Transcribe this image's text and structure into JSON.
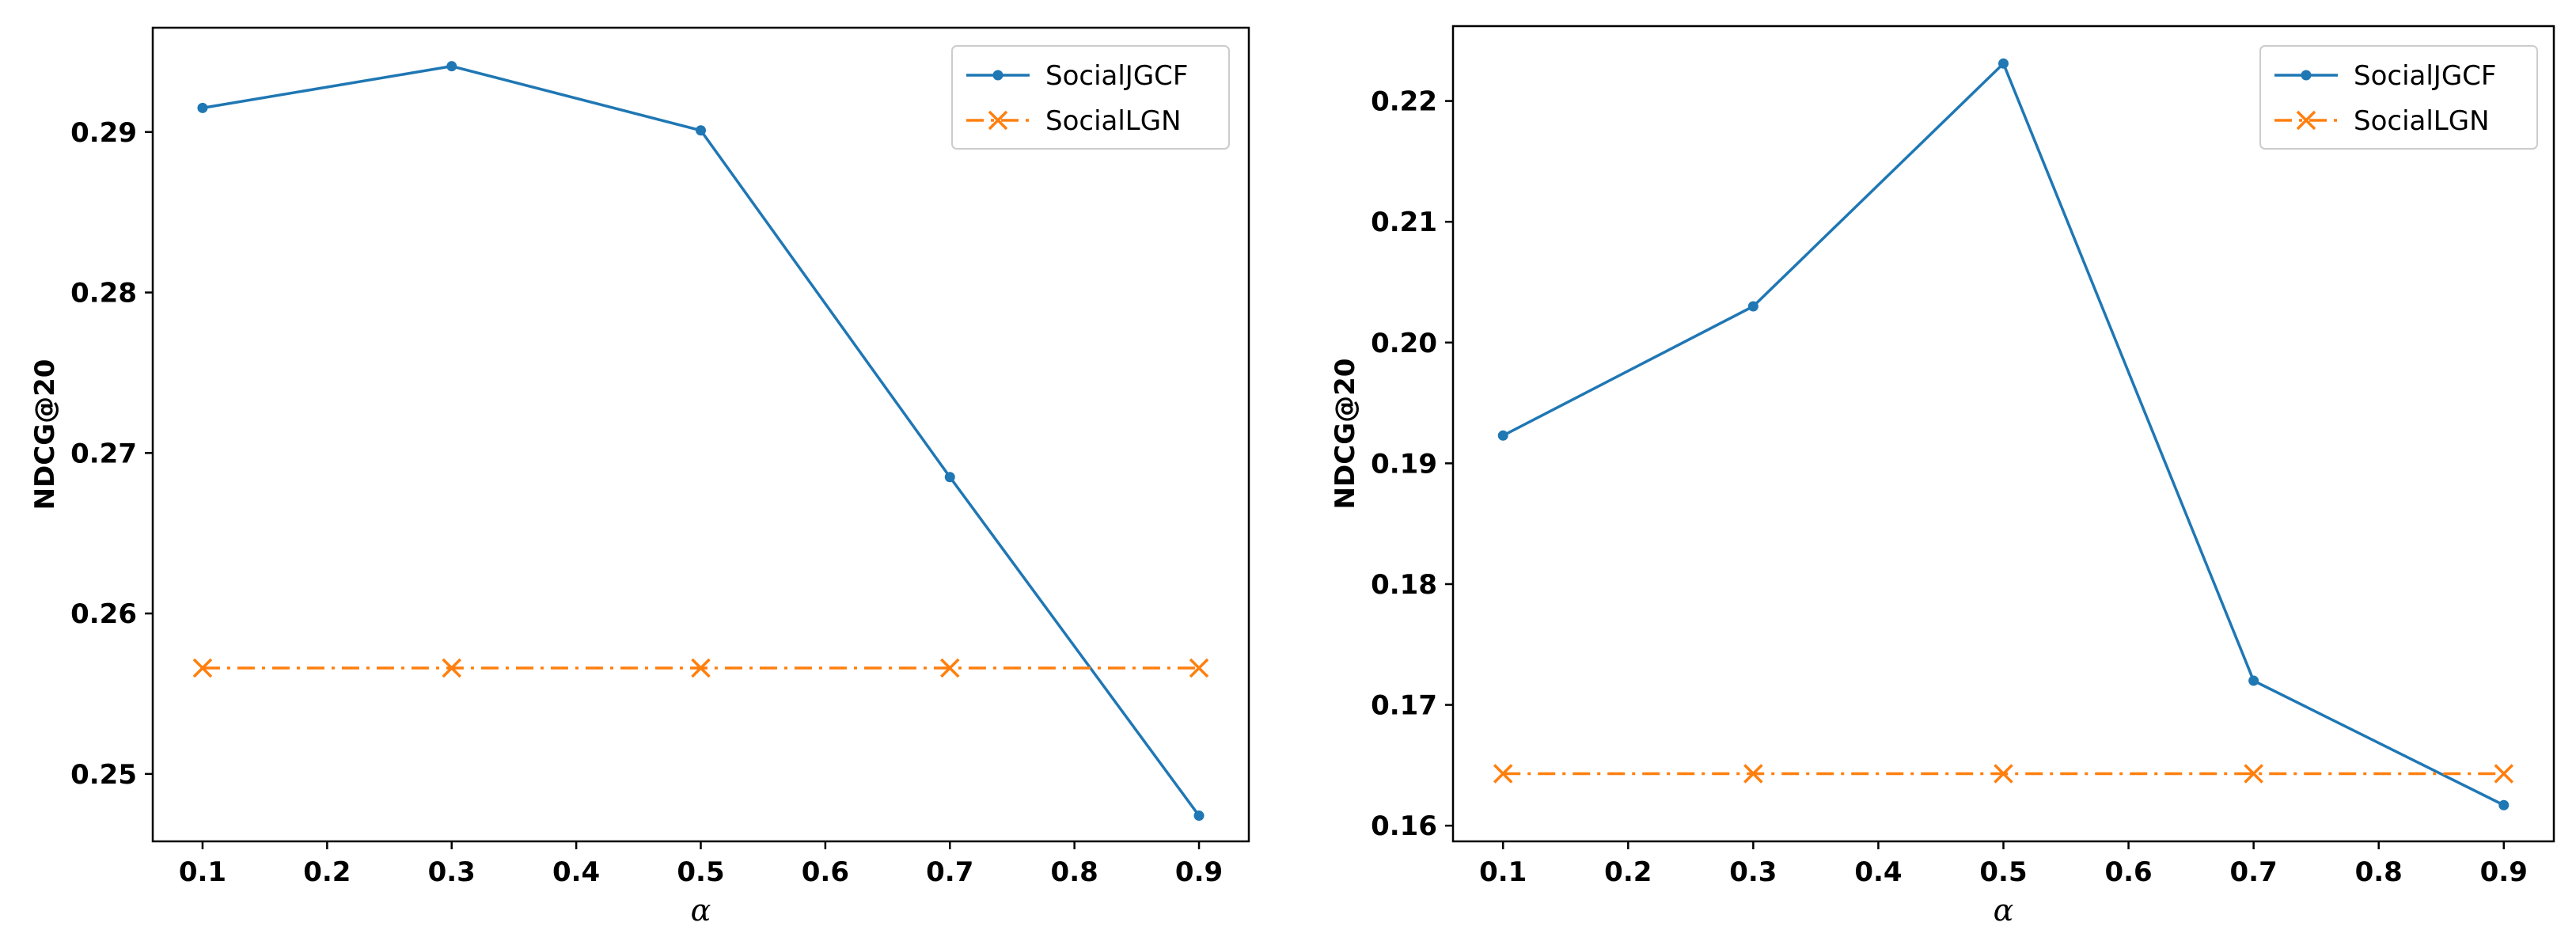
{
  "chart_data": [
    {
      "type": "line",
      "title": "",
      "xlabel": "α",
      "ylabel": "NDCG@20",
      "x": [
        0.1,
        0.3,
        0.5,
        0.7,
        0.9
      ],
      "xticks": [
        0.1,
        0.2,
        0.3,
        0.4,
        0.5,
        0.6,
        0.7,
        0.8,
        0.9
      ],
      "xtick_labels": [
        "0.1",
        "0.2",
        "0.3",
        "0.4",
        "0.5",
        "0.6",
        "0.7",
        "0.8",
        "0.9"
      ],
      "xlim": [
        0.06,
        0.94
      ],
      "yticks": [
        0.25,
        0.26,
        0.27,
        0.28,
        0.29
      ],
      "ytick_labels": [
        "0.25",
        "0.26",
        "0.27",
        "0.28",
        "0.29"
      ],
      "ylim": [
        0.2458,
        0.2965
      ],
      "grid": false,
      "legend_position": "top-right",
      "series": [
        {
          "name": "SocialJGCF",
          "values": [
            0.2915,
            0.2941,
            0.2901,
            0.2685,
            0.2474
          ],
          "color": "#1f77b4",
          "marker": "dot",
          "linestyle": "solid"
        },
        {
          "name": "SocialLGN",
          "values": [
            0.2566,
            0.2566,
            0.2566,
            0.2566,
            0.2566
          ],
          "color": "#ff7f0e",
          "marker": "x",
          "linestyle": "dashdot"
        }
      ]
    },
    {
      "type": "line",
      "title": "",
      "xlabel": "α",
      "ylabel": "NDCG@20",
      "x": [
        0.1,
        0.3,
        0.5,
        0.7,
        0.9
      ],
      "xticks": [
        0.1,
        0.2,
        0.3,
        0.4,
        0.5,
        0.6,
        0.7,
        0.8,
        0.9
      ],
      "xtick_labels": [
        "0.1",
        "0.2",
        "0.3",
        "0.4",
        "0.5",
        "0.6",
        "0.7",
        "0.8",
        "0.9"
      ],
      "xlim": [
        0.06,
        0.94
      ],
      "yticks": [
        0.16,
        0.17,
        0.18,
        0.19,
        0.2,
        0.21,
        0.22
      ],
      "ytick_labels": [
        "0.16",
        "0.17",
        "0.18",
        "0.19",
        "0.20",
        "0.21",
        "0.22"
      ],
      "ylim": [
        0.1587,
        0.2262
      ],
      "grid": false,
      "legend_position": "top-right",
      "series": [
        {
          "name": "SocialJGCF",
          "values": [
            0.1923,
            0.203,
            0.2231,
            0.172,
            0.1617
          ],
          "color": "#1f77b4",
          "marker": "dot",
          "linestyle": "solid"
        },
        {
          "name": "SocialLGN",
          "values": [
            0.1643,
            0.1643,
            0.1643,
            0.1643,
            0.1643
          ],
          "color": "#ff7f0e",
          "marker": "x",
          "linestyle": "dashdot"
        }
      ]
    }
  ]
}
